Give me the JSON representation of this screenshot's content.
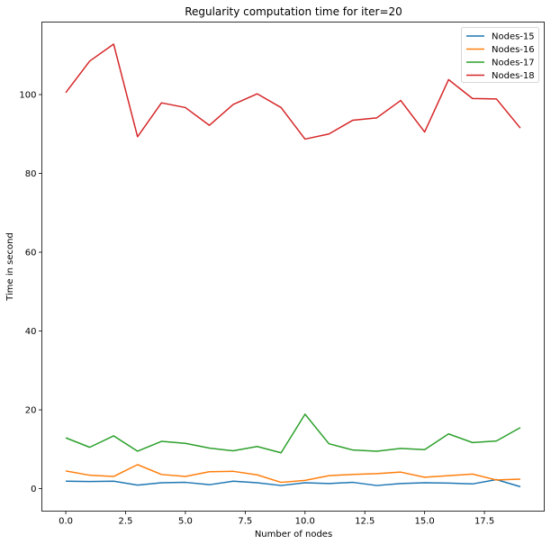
{
  "chart_data": {
    "type": "line",
    "title": "Regularity computation time for iter=20",
    "xlabel": "Number of nodes",
    "ylabel": "Time in second",
    "x": [
      0,
      1,
      2,
      3,
      4,
      5,
      6,
      7,
      8,
      9,
      10,
      11,
      12,
      13,
      14,
      15,
      16,
      17,
      18,
      19
    ],
    "xlim": [
      -1.0,
      20.0
    ],
    "ylim": [
      -5.7,
      118.4
    ],
    "xticks": [
      0.0,
      2.5,
      5.0,
      7.5,
      10.0,
      12.5,
      15.0,
      17.5
    ],
    "xtick_labels": [
      "0.0",
      "2.5",
      "5.0",
      "7.5",
      "10.0",
      "12.5",
      "15.0",
      "17.5"
    ],
    "yticks": [
      0,
      20,
      40,
      60,
      80,
      100
    ],
    "ytick_labels": [
      "0",
      "20",
      "40",
      "60",
      "80",
      "100"
    ],
    "grid": false,
    "legend_position": "top-right",
    "series": [
      {
        "name": "Nodes-15",
        "color": "#1f77b4",
        "values": [
          1.9,
          1.8,
          1.9,
          0.9,
          1.5,
          1.6,
          1.0,
          1.9,
          1.5,
          0.8,
          1.5,
          1.3,
          1.6,
          0.8,
          1.3,
          1.5,
          1.4,
          1.2,
          2.3,
          0.5
        ]
      },
      {
        "name": "Nodes-16",
        "color": "#ff7f0e",
        "values": [
          4.5,
          3.4,
          3.1,
          6.1,
          3.6,
          3.1,
          4.3,
          4.4,
          3.5,
          1.6,
          2.1,
          3.3,
          3.6,
          3.8,
          4.2,
          2.9,
          3.3,
          3.7,
          2.2,
          2.4
        ]
      },
      {
        "name": "Nodes-17",
        "color": "#2ca02c",
        "values": [
          12.9,
          10.5,
          13.4,
          9.5,
          12.0,
          11.5,
          10.3,
          9.6,
          10.7,
          9.1,
          18.9,
          11.4,
          9.8,
          9.5,
          10.2,
          9.9,
          13.9,
          11.7,
          12.1,
          15.5
        ]
      },
      {
        "name": "Nodes-18",
        "color": "#d62728",
        "values": [
          100.5,
          108.5,
          112.8,
          89.3,
          97.9,
          96.7,
          92.2,
          97.5,
          100.2,
          96.7,
          88.7,
          90.0,
          93.5,
          94.1,
          98.5,
          90.5,
          103.8,
          99.0,
          98.9,
          91.5
        ]
      }
    ]
  }
}
